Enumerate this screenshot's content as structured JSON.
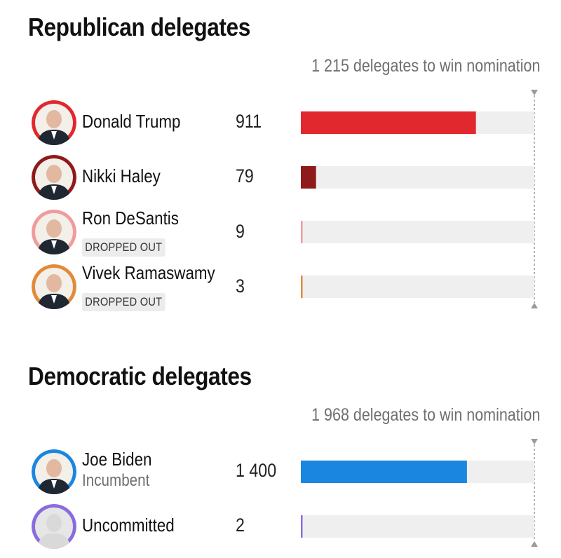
{
  "chart_data": [
    {
      "type": "bar",
      "title": "Republican delegates",
      "threshold_label": "1 215 delegates to win nomination",
      "threshold": 1215,
      "categories": [
        "Donald Trump",
        "Nikki Haley",
        "Ron DeSantis",
        "Vivek Ramaswamy"
      ],
      "value_labels": [
        "911",
        "79",
        "9",
        "3"
      ],
      "values": [
        911,
        79,
        9,
        3
      ],
      "statuses": [
        "",
        "",
        "DROPPED OUT",
        "DROPPED OUT"
      ],
      "colors": [
        "#e0282e",
        "#8f1a1a",
        "#f19b9b",
        "#e38a3a"
      ],
      "avatar_colors": [
        "#e0282e",
        "#8f1a1a",
        "#f19b9b",
        "#e38a3a"
      ],
      "xlim": [
        0,
        1215
      ]
    },
    {
      "type": "bar",
      "title": "Democratic delegates",
      "threshold_label": "1 968 delegates to win nomination",
      "threshold": 1968,
      "categories": [
        "Joe Biden",
        "Uncommitted"
      ],
      "value_labels": [
        "1 400",
        "2"
      ],
      "values": [
        1400,
        2
      ],
      "statuses": [
        "Incumbent",
        ""
      ],
      "colors": [
        "#1a86e0",
        "#8a6be0"
      ],
      "avatar_colors": [
        "#1a86e0",
        "#8a6be0"
      ],
      "xlim": [
        0,
        1968
      ]
    }
  ]
}
